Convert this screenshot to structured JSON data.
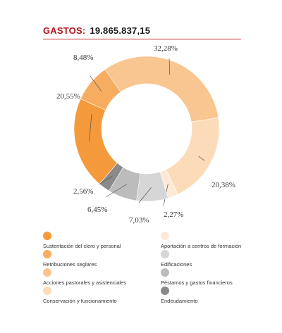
{
  "header": {
    "label": "GASTOS:",
    "value": "19.865.837,15"
  },
  "chart_data": {
    "type": "pie",
    "style": "donut",
    "start_angle_deg": 49.3,
    "direction": "clockwise-from-top-then-continuing",
    "categories": [
      "Sustentación del clero y personal",
      "Retribuciones seglares",
      "Acciones pastorales y asistenciales",
      "Conservación y funcionamiento",
      "Aportación a centros de formación",
      "Edificaciones",
      "Péstamos y gastos financieros",
      "Endeudamiento"
    ],
    "values": [
      20.55,
      8.48,
      32.28,
      20.38,
      2.27,
      7.03,
      6.45,
      2.56
    ],
    "value_labels": [
      "20,55%",
      "8,48%",
      "32,28%",
      "20,38%",
      "2,27%",
      "7,03%",
      "6,45%",
      "2,56%"
    ],
    "colors": [
      "#f59a3a",
      "#f7ad60",
      "#f9c590",
      "#fcdcb8",
      "#fde9d6",
      "#d6d6d6",
      "#bcbcbc",
      "#8a8a8a"
    ],
    "legend_placement": "bottom",
    "grid": false
  }
}
